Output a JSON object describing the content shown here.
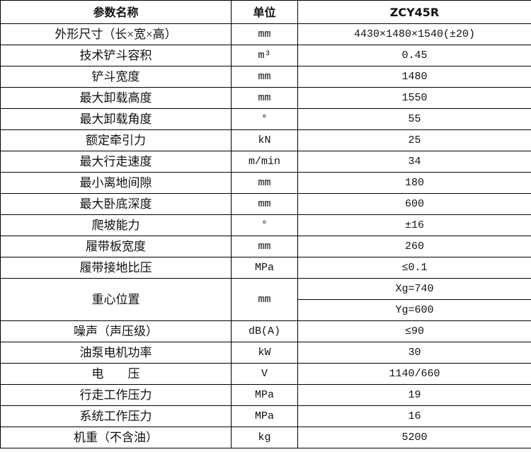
{
  "header": {
    "name": "参数名称",
    "unit": "单位",
    "model": "ZCY45R"
  },
  "rows": [
    {
      "name": "外形尺寸（长×宽×高）",
      "unit": "mm",
      "value": "4430×1480×1540(±20)"
    },
    {
      "name": "技术铲斗容积",
      "unit": "m³",
      "value": "0.45"
    },
    {
      "name": "铲斗宽度",
      "unit": "mm",
      "value": "1480"
    },
    {
      "name": "最大卸载高度",
      "unit": "mm",
      "value": "1550"
    },
    {
      "name": "最大卸载角度",
      "unit": "°",
      "value": "55"
    },
    {
      "name": "额定牵引力",
      "unit": "kN",
      "value": "25"
    },
    {
      "name": "最大行走速度",
      "unit": "m/min",
      "value": "34"
    },
    {
      "name": "最小离地间隙",
      "unit": "mm",
      "value": "180"
    },
    {
      "name": "最大卧底深度",
      "unit": "mm",
      "value": "600"
    },
    {
      "name": "爬坡能力",
      "unit": "°",
      "value": "±16"
    },
    {
      "name": "履带板宽度",
      "unit": "mm",
      "value": "260"
    },
    {
      "name": "履带接地比压",
      "unit": "MPa",
      "value": "≤0.1"
    }
  ],
  "center": {
    "name": "重心位置",
    "unit": "mm",
    "xg": "Xg=740",
    "yg": "Yg=600"
  },
  "rows2": [
    {
      "name": "噪声（声压级）",
      "unit": "dB(A)",
      "value": "≤90"
    },
    {
      "name": "油泵电机功率",
      "unit": "kW",
      "value": "30"
    },
    {
      "name": "电　　压",
      "unit": "V",
      "value": "1140/660"
    },
    {
      "name": "行走工作压力",
      "unit": "MPa",
      "value": "19"
    },
    {
      "name": "系统工作压力",
      "unit": "MPa",
      "value": "16"
    },
    {
      "name": "机重（不含油）",
      "unit": "kg",
      "value": "5200"
    }
  ]
}
